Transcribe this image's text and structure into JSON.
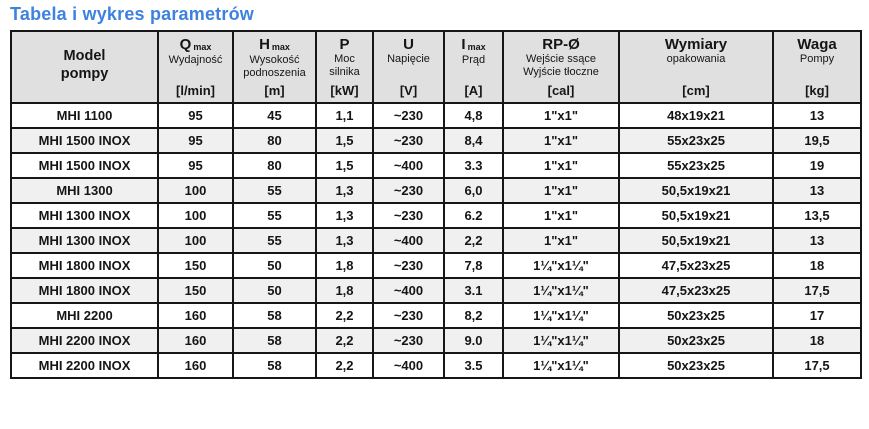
{
  "title": "Tabela i wykres parametrów",
  "colors": {
    "title_accent": "#3f82de",
    "header_bg": "#e0e0e0",
    "row_alt_bg": "#f0f0f0",
    "border": "#161616"
  },
  "table": {
    "columns": [
      {
        "id": "model",
        "style": "model",
        "main": "Model",
        "sub": "",
        "desc": [
          "pompy"
        ],
        "unit": ""
      },
      {
        "id": "qmax",
        "style": "",
        "main": "Q",
        "sub": "max",
        "desc": [
          "Wydajność"
        ],
        "unit": "[l/min]"
      },
      {
        "id": "hmax",
        "style": "",
        "main": "H",
        "sub": "max",
        "desc": [
          "Wysokość",
          "podnoszenia"
        ],
        "unit": "[m]"
      },
      {
        "id": "power",
        "style": "",
        "main": "P",
        "sub": "",
        "desc": [
          "Moc",
          "silnika"
        ],
        "unit": "[kW]"
      },
      {
        "id": "voltage",
        "style": "",
        "main": "U",
        "sub": "",
        "desc": [
          "Napięcie"
        ],
        "unit": "[V]"
      },
      {
        "id": "imax",
        "style": "",
        "main": "I",
        "sub": "max",
        "desc": [
          "Prąd"
        ],
        "unit": "[A]"
      },
      {
        "id": "rp",
        "style": "",
        "main": "RP-Ø",
        "sub": "",
        "desc": [
          "Wejście ssące",
          "Wyjście tłoczne"
        ],
        "unit": "[cal]"
      },
      {
        "id": "dims",
        "style": "",
        "main": "Wymiary",
        "sub": "",
        "desc": [
          "opakowania"
        ],
        "unit": "[cm]"
      },
      {
        "id": "weight",
        "style": "",
        "main": "Waga",
        "sub": "",
        "desc": [
          "Pompy"
        ],
        "unit": "[kg]"
      }
    ],
    "rows": [
      [
        "MHI 1100",
        "95",
        "45",
        "1,1",
        "~230",
        "4,8",
        "1\"x1\"",
        "48x19x21",
        "13"
      ],
      [
        "MHI 1500 INOX",
        "95",
        "80",
        "1,5",
        "~230",
        "8,4",
        "1\"x1\"",
        "55x23x25",
        "19,5"
      ],
      [
        "MHI 1500 INOX",
        "95",
        "80",
        "1,5",
        "~400",
        "3.3",
        "1\"x1\"",
        "55x23x25",
        "19"
      ],
      [
        "MHI 1300",
        "100",
        "55",
        "1,3",
        "~230",
        "6,0",
        "1\"x1\"",
        "50,5x19x21",
        "13"
      ],
      [
        "MHI 1300 INOX",
        "100",
        "55",
        "1,3",
        "~230",
        "6.2",
        "1\"x1\"",
        "50,5x19x21",
        "13,5"
      ],
      [
        "MHI 1300 INOX",
        "100",
        "55",
        "1,3",
        "~400",
        "2,2",
        "1\"x1\"",
        "50,5x19x21",
        "13"
      ],
      [
        "MHI 1800 INOX",
        "150",
        "50",
        "1,8",
        "~230",
        "7,8",
        "1¼\"x1¼\"",
        "47,5x23x25",
        "18"
      ],
      [
        "MHI 1800 INOX",
        "150",
        "50",
        "1,8",
        "~400",
        "3.1",
        "1¼\"x1¼\"",
        "47,5x23x25",
        "17,5"
      ],
      [
        "MHI 2200",
        "160",
        "58",
        "2,2",
        "~230",
        "8,2",
        "1¼\"x1¼\"",
        "50x23x25",
        "17"
      ],
      [
        "MHI 2200 INOX",
        "160",
        "58",
        "2,2",
        "~230",
        "9.0",
        "1¼\"x1¼\"",
        "50x23x25",
        "18"
      ],
      [
        "MHI 2200 INOX",
        "160",
        "58",
        "2,2",
        "~400",
        "3.5",
        "1¼\"x1¼\"",
        "50x23x25",
        "17,5"
      ]
    ]
  }
}
